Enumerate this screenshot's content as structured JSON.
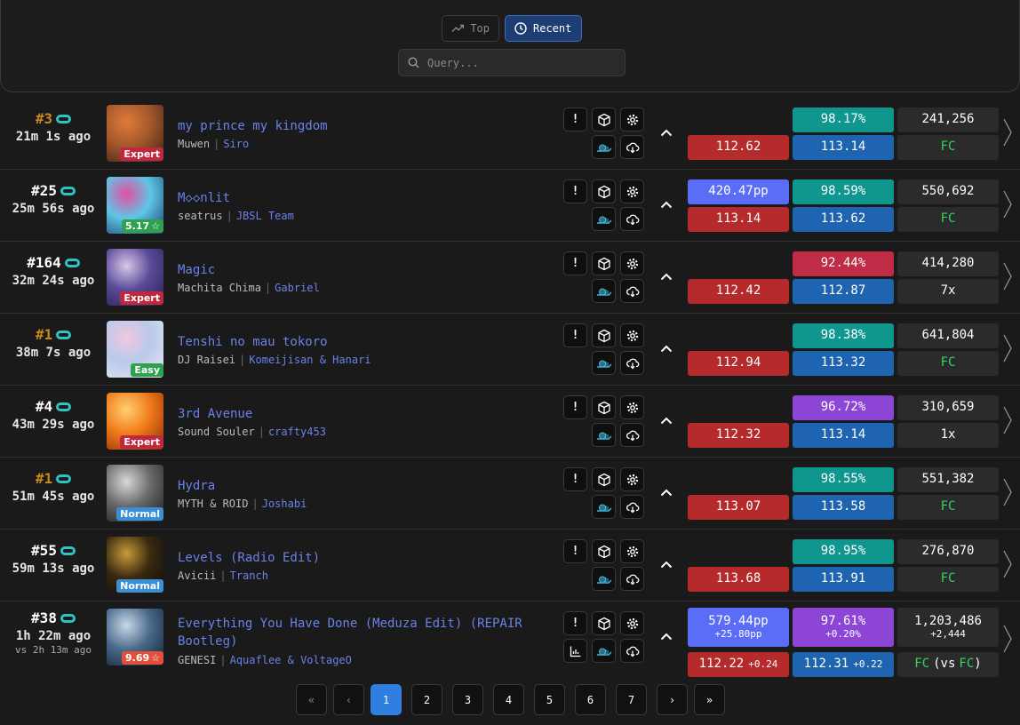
{
  "tabs": [
    {
      "label": "Top"
    },
    {
      "label": "Recent"
    }
  ],
  "search": {
    "placeholder": "Query..."
  },
  "rows": [
    {
      "rank": "#3",
      "rank_color": "#c8891e",
      "time": "21m 1s ago",
      "title": "my prince my kingdom",
      "title2": "",
      "artist": "Muwen",
      "mapper": "Siro",
      "badge": "Expert",
      "badge_color": "#c0283f",
      "stars": "",
      "cover": [
        "#3a1f16",
        "#a3582b",
        "#e07a3a"
      ],
      "pp": "",
      "pp_delta": "",
      "acc": "98.17%",
      "acc_delta": "",
      "acc_color": "c-teal",
      "score": "241,256",
      "score_delta": "",
      "red": "112.62",
      "red_delta": "",
      "blue": "113.14",
      "blue_delta": "",
      "status": "FC",
      "status_vs": "",
      "status_fc": true,
      "extra_icon": false
    },
    {
      "rank": "#25",
      "rank_color": "#ffffff",
      "time": "25m 56s ago",
      "title": "M◇◇nlit",
      "title2": "",
      "artist": "seatrus",
      "mapper": "JBSL Team",
      "badge": "5.17",
      "badge_color": "#2fa04e",
      "stars": "☆",
      "cover": [
        "#1b3d6d",
        "#5ec6e8",
        "#e34fa0"
      ],
      "pp": "420.47pp",
      "pp_delta": "",
      "acc": "98.59%",
      "acc_delta": "",
      "acc_color": "c-teal",
      "score": "550,692",
      "score_delta": "",
      "red": "113.14",
      "red_delta": "",
      "blue": "113.62",
      "blue_delta": "",
      "status": "FC",
      "status_vs": "",
      "status_fc": true,
      "extra_icon": false
    },
    {
      "rank": "#164",
      "rank_color": "#ffffff",
      "time": "32m 24s ago",
      "title": "Magic",
      "title2": "",
      "artist": "Machita Chima",
      "mapper": "Gabriel",
      "badge": "Expert",
      "badge_color": "#c0283f",
      "stars": "",
      "cover": [
        "#2a1f4a",
        "#5a4a9a",
        "#d8c8e8"
      ],
      "pp": "",
      "pp_delta": "",
      "acc": "92.44%",
      "acc_delta": "",
      "acc_color": "c-crim",
      "score": "414,280",
      "score_delta": "",
      "red": "112.42",
      "red_delta": "",
      "blue": "112.87",
      "blue_delta": "",
      "status": "7x",
      "status_vs": "",
      "status_fc": false,
      "extra_icon": false
    },
    {
      "rank": "#1",
      "rank_color": "#c8891e",
      "time": "38m 7s ago",
      "title": "Tenshi no mau tokoro",
      "title2": "",
      "artist": "DJ Raisei",
      "mapper": "Komeijisan & Hanari",
      "badge": "Easy",
      "badge_color": "#2fa04e",
      "stars": "",
      "cover": [
        "#e8e8f2",
        "#b9c9ea",
        "#f0c8e0"
      ],
      "pp": "",
      "pp_delta": "",
      "acc": "98.38%",
      "acc_delta": "",
      "acc_color": "c-teal",
      "score": "641,804",
      "score_delta": "",
      "red": "112.94",
      "red_delta": "",
      "blue": "113.32",
      "blue_delta": "",
      "status": "FC",
      "status_vs": "",
      "status_fc": true,
      "extra_icon": false
    },
    {
      "rank": "#4",
      "rank_color": "#ffffff",
      "time": "43m 29s ago",
      "title": "3rd Avenue",
      "title2": "",
      "artist": "Sound Souler",
      "mapper": "crafty453",
      "badge": "Expert",
      "badge_color": "#c0283f",
      "stars": "",
      "cover": [
        "#8a2b0a",
        "#f07a1a",
        "#ffd070"
      ],
      "pp": "",
      "pp_delta": "",
      "acc": "96.72%",
      "acc_delta": "",
      "acc_color": "c-purp",
      "score": "310,659",
      "score_delta": "",
      "red": "112.32",
      "red_delta": "",
      "blue": "113.14",
      "blue_delta": "",
      "status": "1x",
      "status_vs": "",
      "status_fc": false,
      "extra_icon": false
    },
    {
      "rank": "#1",
      "rank_color": "#c8891e",
      "time": "51m 45s ago",
      "title": "Hydra",
      "title2": "",
      "artist": "MYTH & ROID",
      "mapper": "Joshabi",
      "badge": "Normal",
      "badge_color": "#3a8fd6",
      "stars": "",
      "cover": [
        "#1a1a1a",
        "#6a6a6a",
        "#d8d8d8"
      ],
      "pp": "",
      "pp_delta": "",
      "acc": "98.55%",
      "acc_delta": "",
      "acc_color": "c-teal",
      "score": "551,382",
      "score_delta": "",
      "red": "113.07",
      "red_delta": "",
      "blue": "113.58",
      "blue_delta": "",
      "status": "FC",
      "status_vs": "",
      "status_fc": true,
      "extra_icon": false
    },
    {
      "rank": "#55",
      "rank_color": "#ffffff",
      "time": "59m 13s ago",
      "title": "Levels (Radio Edit)",
      "title2": "",
      "artist": "Avicii",
      "mapper": "Tranch",
      "badge": "Normal",
      "badge_color": "#3a8fd6",
      "stars": "",
      "cover": [
        "#0a0a0a",
        "#3a2a10",
        "#c89a3a"
      ],
      "pp": "",
      "pp_delta": "",
      "acc": "98.95%",
      "acc_delta": "",
      "acc_color": "c-teal",
      "score": "276,870",
      "score_delta": "",
      "red": "113.68",
      "red_delta": "",
      "blue": "113.91",
      "blue_delta": "",
      "status": "FC",
      "status_vs": "",
      "status_fc": true,
      "extra_icon": false
    },
    {
      "rank": "#38",
      "rank_color": "#ffffff",
      "time": "1h 22m ago",
      "vs": "vs 2h 13m ago",
      "title": "Everything You Have Done (Meduza Edit) (REPAIR",
      "title2": "Bootleg)",
      "artist": "GENESI",
      "mapper": "Aquaflee & VoltageO",
      "badge": "9.69",
      "badge_color": "#e0503a",
      "stars": "☆",
      "cover": [
        "#0f1e30",
        "#4a6a8a",
        "#c8d8e8"
      ],
      "pp": "579.44pp",
      "pp_delta": "+25.80pp",
      "acc": "97.61%",
      "acc_delta": "+0.20%",
      "acc_color": "c-purp",
      "score": "1,203,486",
      "score_delta": "+2,444",
      "red": "112.22",
      "red_delta": "+0.24",
      "blue": "112.31",
      "blue_delta": "+0.22",
      "status": "FC",
      "status_vs": "FC",
      "status_fc": true,
      "extra_icon": true
    }
  ],
  "pagination": {
    "first": "«",
    "prev": "‹",
    "pages": [
      "1",
      "2",
      "3",
      "4",
      "5",
      "6",
      "7"
    ],
    "active": "1",
    "next": "›",
    "last": "»"
  },
  "icons": {
    "report": "!",
    "cube": "cube-icon",
    "settings": "gear-icon",
    "replay": "snail-icon",
    "download": "cloud-download-icon"
  }
}
